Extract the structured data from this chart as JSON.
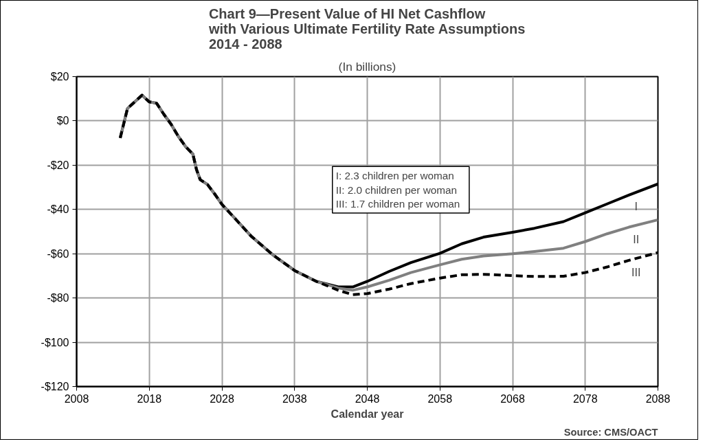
{
  "chart_data": {
    "type": "line",
    "title": "Chart 9—Present Value of HI Net Cashflow\nwith Various Ultimate Fertility Rate Assumptions\n2014 - 2088",
    "subtitle": "(In billions)",
    "xlabel": "Calendar year",
    "x": [
      2014,
      2015,
      2017,
      2018,
      2019,
      2020,
      2021,
      2022,
      2023,
      2024,
      2024.5,
      2025,
      2026,
      2027,
      2028,
      2030,
      2032,
      2035,
      2038,
      2041,
      2044,
      2046,
      2048,
      2051,
      2054,
      2058,
      2061,
      2064,
      2068,
      2071,
      2075,
      2078,
      2081,
      2084,
      2088
    ],
    "series": [
      {
        "name": "I",
        "color": "#000000",
        "line_style": "solid",
        "values": [
          -7.7,
          5.6,
          11.6,
          8.6,
          8.0,
          3,
          -1.5,
          -7,
          -11.6,
          -15,
          -22,
          -26.5,
          -28.7,
          -33,
          -37.7,
          -44.8,
          -52,
          -60.5,
          -67.6,
          -72.5,
          -75,
          -75,
          -72.5,
          -68,
          -64,
          -59.8,
          -55.5,
          -52.5,
          -50.3,
          -48.5,
          -45.5,
          -41.5,
          -37.5,
          -33.5,
          -28.5
        ]
      },
      {
        "name": "II",
        "color": "#808080",
        "line_style": "solid",
        "values": [
          -7.7,
          5.6,
          11.6,
          8.6,
          8.0,
          3,
          -1.5,
          -7,
          -11.6,
          -15,
          -22,
          -26.5,
          -28.7,
          -33,
          -37.7,
          -44.8,
          -52,
          -60.5,
          -67.6,
          -72.5,
          -75.5,
          -76.5,
          -75,
          -72,
          -68.5,
          -65,
          -62.5,
          -61,
          -60,
          -59,
          -57.5,
          -54.5,
          -51,
          -48,
          -44.7
        ]
      },
      {
        "name": "III",
        "color": "#000000",
        "line_style": "dashed",
        "values": [
          -7.7,
          5.6,
          11.6,
          8.6,
          8.0,
          3,
          -1.5,
          -7,
          -11.6,
          -15,
          -22,
          -26.5,
          -28.7,
          -33,
          -37.7,
          -44.8,
          -52,
          -60.5,
          -67.6,
          -72.5,
          -76.5,
          -78.5,
          -78,
          -76,
          -73.5,
          -71,
          -69.5,
          -69.3,
          -69.9,
          -70.3,
          -70.2,
          -68.5,
          -66,
          -63,
          -59.5
        ]
      }
    ],
    "xlim": [
      2008,
      2088
    ],
    "xticks": [
      2008,
      2018,
      2028,
      2038,
      2048,
      2058,
      2068,
      2078,
      2088
    ],
    "ylim": [
      -120,
      20
    ],
    "yticks": [
      {
        "value": 20,
        "label": "$20"
      },
      {
        "value": 0,
        "label": "$0"
      },
      {
        "value": -20,
        "label": "-$20"
      },
      {
        "value": -40,
        "label": "-$40"
      },
      {
        "value": -60,
        "label": "-$60"
      },
      {
        "value": -80,
        "label": "-$80"
      },
      {
        "value": -100,
        "label": "-$100"
      },
      {
        "value": -120,
        "label": "-$120"
      }
    ],
    "grid": true,
    "annotations": [
      "I:  2.3  children per woman",
      "II:  2.0  children per woman",
      "III:  1.7  children per woman",
      "Source: CMS/OACT"
    ]
  }
}
